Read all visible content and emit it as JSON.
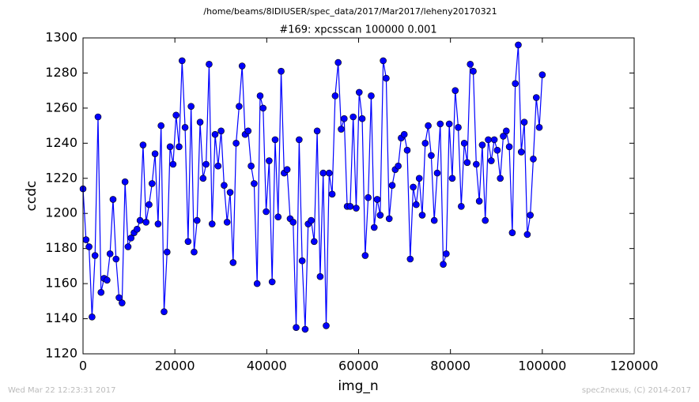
{
  "chart_data": {
    "type": "line",
    "suptitle": "/home/beams/8IDIUSER/spec_data/2017/Mar2017/leheny20170321",
    "title": "#169: xpcsscan 100000 0.001",
    "xlabel": "img_n",
    "ylabel": "ccdc",
    "footer_left": "Wed Mar 22 12:23:31 2017",
    "footer_right": "spec2nexus, (C) 2014-2017",
    "xlim": [
      0,
      120000
    ],
    "xticks": [
      0,
      20000,
      40000,
      60000,
      80000,
      100000,
      120000
    ],
    "ylim": [
      1120,
      1300
    ],
    "yticks": [
      1120,
      1140,
      1160,
      1180,
      1200,
      1220,
      1240,
      1260,
      1280,
      1300
    ],
    "grid": false,
    "x": [
      0,
      654,
      1307,
      1961,
      2614,
      3268,
      3922,
      4575,
      5229,
      5882,
      6536,
      7190,
      7843,
      8497,
      9150,
      9804,
      10458,
      11111,
      11765,
      12418,
      13072,
      13725,
      14379,
      15033,
      15686,
      16340,
      16993,
      17647,
      18301,
      18954,
      19608,
      20261,
      20915,
      21569,
      22222,
      22876,
      23529,
      24183,
      24837,
      25490,
      26144,
      26797,
      27451,
      28105,
      28758,
      29412,
      30065,
      30719,
      31373,
      32026,
      32680,
      33333,
      33987,
      34641,
      35294,
      35948,
      36601,
      37255,
      37908,
      38562,
      39216,
      39869,
      40523,
      41176,
      41830,
      42484,
      43137,
      43791,
      44444,
      45098,
      45752,
      46405,
      47059,
      47712,
      48366,
      49020,
      49673,
      50327,
      50980,
      51634,
      52288,
      52941,
      53595,
      54248,
      54902,
      55556,
      56209,
      56863,
      57516,
      58170,
      58824,
      59477,
      60131,
      60784,
      61438,
      62092,
      62745,
      63399,
      64052,
      64706,
      65359,
      66013,
      66667,
      67320,
      67974,
      68627,
      69281,
      69935,
      70588,
      71242,
      71895,
      72549,
      73203,
      73856,
      74510,
      75163,
      75817,
      76471,
      77124,
      77778,
      78431,
      79085,
      79739,
      80392,
      81046,
      81699,
      82353,
      83007,
      83660,
      84314,
      84967,
      85621,
      86275,
      86928,
      87582,
      88235,
      88889,
      89542,
      90196,
      90850,
      91503,
      92157,
      92810,
      93464,
      94118,
      94771,
      95425,
      96078,
      96732,
      97386,
      98039,
      98693,
      99346,
      100000
    ],
    "series": [
      {
        "color": "#0000ff",
        "values": [
          1214,
          1185,
          1181,
          1141,
          1176,
          1255,
          1155,
          1163,
          1162,
          1177,
          1208,
          1174,
          1152,
          1149,
          1218,
          1181,
          1186,
          1189,
          1191,
          1196,
          1239,
          1195,
          1205,
          1217,
          1234,
          1194,
          1250,
          1144,
          1178,
          1238,
          1228,
          1256,
          1238,
          1287,
          1249,
          1184,
          1261,
          1178,
          1196,
          1252,
          1220,
          1228,
          1285,
          1194,
          1245,
          1227,
          1247,
          1216,
          1195,
          1212,
          1172,
          1240,
          1261,
          1284,
          1245,
          1247,
          1227,
          1217,
          1160,
          1267,
          1260,
          1201,
          1230,
          1161,
          1242,
          1198,
          1281,
          1223,
          1225,
          1197,
          1195,
          1135,
          1242,
          1173,
          1134,
          1194,
          1196,
          1184,
          1247,
          1164,
          1223,
          1136,
          1223,
          1211,
          1267,
          1286,
          1248,
          1254,
          1204,
          1204,
          1255,
          1203,
          1269,
          1254,
          1176,
          1209,
          1267,
          1192,
          1208,
          1199,
          1287,
          1277,
          1197,
          1216,
          1225,
          1227,
          1243,
          1245,
          1236,
          1174,
          1215,
          1205,
          1220,
          1199,
          1240,
          1250,
          1233,
          1196,
          1223,
          1251,
          1171,
          1177,
          1251,
          1220,
          1270,
          1249,
          1204,
          1240,
          1229,
          1285,
          1281,
          1228,
          1207,
          1239,
          1196,
          1242,
          1230,
          1242,
          1236,
          1220,
          1244,
          1247,
          1238,
          1189,
          1274,
          1296,
          1235,
          1252,
          1188,
          1199,
          1231,
          1266,
          1249,
          1279
        ]
      }
    ]
  }
}
